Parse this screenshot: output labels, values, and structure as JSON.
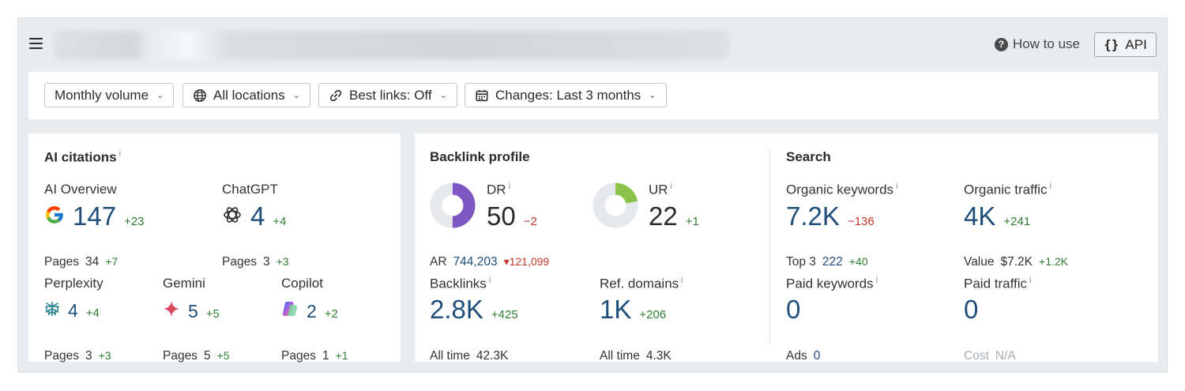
{
  "header": {
    "how_to_use": "How to use",
    "api_label": "API",
    "api_braces": "{}"
  },
  "filters": [
    {
      "label": "Monthly volume",
      "icon": "none"
    },
    {
      "label": "All locations",
      "icon": "globe-icon"
    },
    {
      "label": "Best links: Off",
      "icon": "link-icon"
    },
    {
      "label": "Changes: Last 3 months",
      "icon": "calendar-icon"
    }
  ],
  "ai_citations": {
    "title": "AI citations",
    "info": "i",
    "ai_overview": {
      "label": "AI Overview",
      "value": "147",
      "delta": "+23",
      "pages_label": "Pages",
      "pages": "34",
      "pages_delta": "+7"
    },
    "chatgpt": {
      "label": "ChatGPT",
      "value": "4",
      "delta": "+4",
      "pages_label": "Pages",
      "pages": "3",
      "pages_delta": "+3"
    },
    "perplexity": {
      "label": "Perplexity",
      "value": "4",
      "delta": "+4",
      "pages_label": "Pages",
      "pages": "3",
      "pages_delta": "+3"
    },
    "gemini": {
      "label": "Gemini",
      "value": "5",
      "delta": "+5",
      "pages_label": "Pages",
      "pages": "5",
      "pages_delta": "+5"
    },
    "copilot": {
      "label": "Copilot",
      "value": "2",
      "delta": "+2",
      "pages_label": "Pages",
      "pages": "1",
      "pages_delta": "+1"
    }
  },
  "backlink_profile": {
    "title": "Backlink profile",
    "dr": {
      "label": "DR",
      "info": "i",
      "value": "50",
      "delta": "−2",
      "fraction": 0.5,
      "color": "#7e57c2"
    },
    "ur": {
      "label": "UR",
      "info": "i",
      "value": "22",
      "delta": "+1",
      "fraction": 0.22,
      "color": "#8bc34a"
    },
    "ar": {
      "label": "AR",
      "value": "744,203",
      "delta": "▾121,099"
    },
    "backlinks": {
      "label": "Backlinks",
      "info": "i",
      "value": "2.8K",
      "delta": "+425",
      "sub_label": "All time",
      "sub_value": "42.3K"
    },
    "ref_domains": {
      "label": "Ref. domains",
      "info": "i",
      "value": "1K",
      "delta": "+206",
      "sub_label": "All time",
      "sub_value": "4.3K"
    }
  },
  "search": {
    "title": "Search",
    "organic_keywords": {
      "label": "Organic keywords",
      "info": "i",
      "value": "7.2K",
      "delta": "−136",
      "sub_label": "Top 3",
      "sub_value": "222",
      "sub_delta": "+40"
    },
    "organic_traffic": {
      "label": "Organic traffic",
      "info": "i",
      "value": "4K",
      "delta": "+241",
      "sub_label": "Value",
      "sub_value": "$7.2K",
      "sub_delta": "+1.2K"
    },
    "paid_keywords": {
      "label": "Paid keywords",
      "info": "i",
      "value": "0",
      "sub_label": "Ads",
      "sub_value": "0"
    },
    "paid_traffic": {
      "label": "Paid traffic",
      "info": "i",
      "value": "0",
      "sub_label": "Cost",
      "sub_value": "N/A"
    }
  },
  "colors": {
    "link_blue": "#1f4e79",
    "positive": "#2e7d32",
    "negative": "#c0392b"
  }
}
